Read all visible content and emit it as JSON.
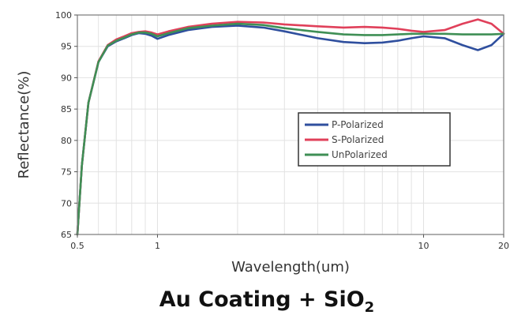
{
  "chart_data": {
    "type": "line",
    "title": "Au Coating + SiO",
    "title_subscript": "2",
    "xlabel": "Wavelength(um)",
    "ylabel": "Reflectance(%)",
    "x_scale": "log",
    "xlim": [
      0.5,
      20
    ],
    "ylim": [
      65,
      100
    ],
    "x_ticks": [
      0.5,
      1,
      10,
      20
    ],
    "x_tick_labels": [
      "0.5",
      "1",
      "10",
      "20"
    ],
    "y_ticks": [
      65,
      70,
      75,
      80,
      85,
      90,
      95,
      100
    ],
    "y_tick_labels": [
      "65",
      "70",
      "75",
      "80",
      "85",
      "90",
      "95",
      "100"
    ],
    "grid": true,
    "legend_position": "center-right",
    "series": [
      {
        "name": "P-Polarized",
        "color": "#2f4f9e",
        "x": [
          0.5,
          0.52,
          0.55,
          0.6,
          0.65,
          0.7,
          0.75,
          0.8,
          0.85,
          0.9,
          0.95,
          1.0,
          1.1,
          1.3,
          1.6,
          2.0,
          2.5,
          3,
          4,
          5,
          6,
          7,
          8,
          9,
          10,
          12,
          14,
          16,
          18,
          20
        ],
        "y": [
          65,
          76,
          86,
          92.5,
          95,
          95.8,
          96.3,
          96.8,
          97.1,
          97.0,
          96.7,
          96.2,
          96.8,
          97.6,
          98.1,
          98.3,
          98.0,
          97.4,
          96.3,
          95.7,
          95.5,
          95.6,
          95.9,
          96.3,
          96.6,
          96.3,
          95.2,
          94.4,
          95.2,
          97.0
        ]
      },
      {
        "name": "S-Polarized",
        "color": "#e0405a",
        "x": [
          0.5,
          0.52,
          0.55,
          0.6,
          0.65,
          0.7,
          0.75,
          0.8,
          0.85,
          0.9,
          0.95,
          1.0,
          1.1,
          1.3,
          1.6,
          2.0,
          2.5,
          3,
          4,
          5,
          6,
          7,
          8,
          9,
          10,
          12,
          14,
          16,
          18,
          20
        ],
        "y": [
          65,
          76,
          86,
          92.6,
          95.2,
          96.1,
          96.6,
          97.1,
          97.3,
          97.4,
          97.2,
          96.9,
          97.4,
          98.1,
          98.6,
          98.9,
          98.8,
          98.5,
          98.2,
          98.0,
          98.1,
          98.0,
          97.8,
          97.5,
          97.3,
          97.6,
          98.6,
          99.3,
          98.6,
          97.0
        ]
      },
      {
        "name": "UnPolarized",
        "color": "#3f8f55",
        "x": [
          0.5,
          0.52,
          0.55,
          0.6,
          0.65,
          0.7,
          0.75,
          0.8,
          0.85,
          0.9,
          0.95,
          1.0,
          1.1,
          1.3,
          1.6,
          2.0,
          2.5,
          3,
          4,
          5,
          6,
          7,
          8,
          9,
          10,
          12,
          14,
          16,
          18,
          20
        ],
        "y": [
          65,
          76,
          86,
          92.5,
          95.1,
          95.9,
          96.4,
          96.9,
          97.2,
          97.2,
          97.0,
          96.6,
          97.1,
          97.9,
          98.3,
          98.6,
          98.4,
          97.9,
          97.3,
          96.9,
          96.8,
          96.8,
          96.9,
          97.0,
          97.0,
          97.0,
          96.9,
          96.9,
          96.9,
          97.0
        ]
      }
    ]
  }
}
